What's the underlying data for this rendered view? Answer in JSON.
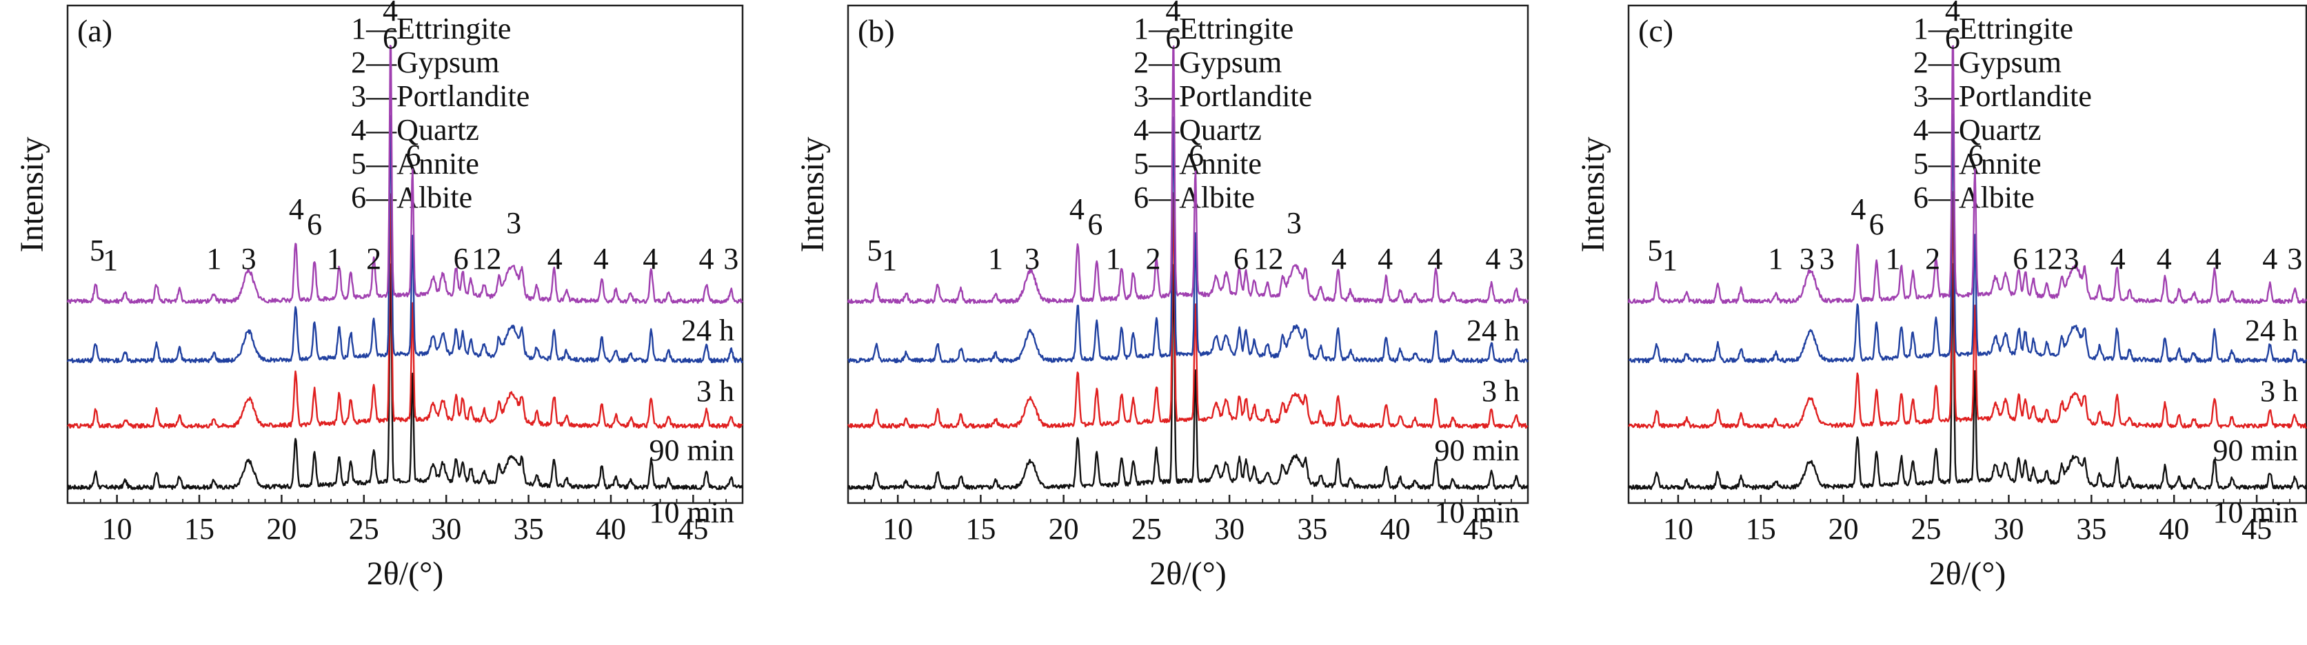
{
  "chart_data": [
    {
      "type": "line",
      "panel_label": "(a)",
      "xlabel": "2θ/(°)",
      "ylabel": "Intensity",
      "xlim": [
        7,
        48
      ],
      "x_ticks": [
        10,
        15,
        20,
        25,
        30,
        35,
        40,
        45
      ],
      "legend": [
        "1—Ettringite",
        "2—Gypsum",
        "3—Portlandite",
        "4—Quartz",
        "5—Annite",
        "6—Albite"
      ],
      "series": [
        {
          "name": "10 min",
          "color": "#111111"
        },
        {
          "name": "90 min",
          "color": "#e02020"
        },
        {
          "name": "3 h",
          "color": "#2040a0"
        },
        {
          "name": "24 h",
          "color": "#a040b0"
        }
      ],
      "peak_labels": [
        {
          "x": 8.8,
          "text": "5"
        },
        {
          "x": 9.6,
          "text": "1"
        },
        {
          "x": 15.9,
          "text": "1"
        },
        {
          "x": 18.0,
          "text": "3"
        },
        {
          "x": 20.9,
          "text": "4"
        },
        {
          "x": 22.0,
          "text": "6"
        },
        {
          "x": 23.2,
          "text": "1"
        },
        {
          "x": 25.6,
          "text": "2"
        },
        {
          "x": 26.6,
          "text": "4"
        },
        {
          "x": 26.6,
          "text": "6"
        },
        {
          "x": 28.0,
          "text": "6"
        },
        {
          "x": 30.9,
          "text": "6"
        },
        {
          "x": 32.0,
          "text": "1"
        },
        {
          "x": 32.9,
          "text": "2"
        },
        {
          "x": 34.1,
          "text": "3"
        },
        {
          "x": 36.6,
          "text": "4"
        },
        {
          "x": 39.4,
          "text": "4"
        },
        {
          "x": 42.4,
          "text": "4"
        },
        {
          "x": 45.8,
          "text": "4"
        },
        {
          "x": 47.3,
          "text": "3"
        }
      ]
    },
    {
      "type": "line",
      "panel_label": "(b)",
      "xlabel": "2θ/(°)",
      "ylabel": "Intensity",
      "xlim": [
        7,
        48
      ],
      "x_ticks": [
        10,
        15,
        20,
        25,
        30,
        35,
        40,
        45
      ],
      "legend": [
        "1—Ettringite",
        "2—Gypsum",
        "3—Portlandite",
        "4—Quartz",
        "5—Annite",
        "6—Albite"
      ],
      "series": [
        {
          "name": "10 min",
          "color": "#111111"
        },
        {
          "name": "90 min",
          "color": "#e02020"
        },
        {
          "name": "3 h",
          "color": "#2040a0"
        },
        {
          "name": "24 h",
          "color": "#a040b0"
        }
      ],
      "peak_labels": [
        {
          "x": 8.6,
          "text": "5"
        },
        {
          "x": 9.5,
          "text": "1"
        },
        {
          "x": 15.9,
          "text": "1"
        },
        {
          "x": 18.1,
          "text": "3"
        },
        {
          "x": 20.8,
          "text": "4"
        },
        {
          "x": 21.9,
          "text": "6"
        },
        {
          "x": 23.0,
          "text": "1"
        },
        {
          "x": 25.4,
          "text": "2"
        },
        {
          "x": 26.6,
          "text": "4"
        },
        {
          "x": 26.6,
          "text": "6"
        },
        {
          "x": 28.0,
          "text": "6"
        },
        {
          "x": 30.7,
          "text": "6"
        },
        {
          "x": 31.9,
          "text": "1"
        },
        {
          "x": 32.8,
          "text": "2"
        },
        {
          "x": 33.9,
          "text": "3"
        },
        {
          "x": 36.6,
          "text": "4"
        },
        {
          "x": 39.4,
          "text": "4"
        },
        {
          "x": 42.4,
          "text": "4"
        },
        {
          "x": 45.9,
          "text": "4"
        },
        {
          "x": 47.3,
          "text": "3"
        }
      ]
    },
    {
      "type": "line",
      "panel_label": "(c)",
      "xlabel": "2θ/(°)",
      "ylabel": "Intensity",
      "xlim": [
        7,
        48
      ],
      "x_ticks": [
        10,
        15,
        20,
        25,
        30,
        35,
        40,
        45
      ],
      "legend": [
        "1—Ettringite",
        "2—Gypsum",
        "3—Portlandite",
        "4—Quartz",
        "5—Annite",
        "6—Albite"
      ],
      "series": [
        {
          "name": "10 min",
          "color": "#111111"
        },
        {
          "name": "90 min",
          "color": "#e02020"
        },
        {
          "name": "3 h",
          "color": "#2040a0"
        },
        {
          "name": "24 h",
          "color": "#a040b0"
        }
      ],
      "peak_labels": [
        {
          "x": 8.6,
          "text": "5"
        },
        {
          "x": 9.5,
          "text": "1"
        },
        {
          "x": 15.9,
          "text": "1"
        },
        {
          "x": 17.8,
          "text": "3"
        },
        {
          "x": 19.0,
          "text": "3"
        },
        {
          "x": 20.9,
          "text": "4"
        },
        {
          "x": 22.0,
          "text": "6"
        },
        {
          "x": 23.0,
          "text": "1"
        },
        {
          "x": 25.4,
          "text": "2"
        },
        {
          "x": 26.6,
          "text": "4"
        },
        {
          "x": 26.6,
          "text": "6"
        },
        {
          "x": 28.0,
          "text": "6"
        },
        {
          "x": 30.7,
          "text": "6"
        },
        {
          "x": 31.9,
          "text": "1"
        },
        {
          "x": 32.8,
          "text": "2"
        },
        {
          "x": 33.8,
          "text": "3"
        },
        {
          "x": 36.6,
          "text": "4"
        },
        {
          "x": 39.4,
          "text": "4"
        },
        {
          "x": 42.4,
          "text": "4"
        },
        {
          "x": 45.8,
          "text": "4"
        },
        {
          "x": 47.3,
          "text": "3"
        }
      ]
    }
  ]
}
